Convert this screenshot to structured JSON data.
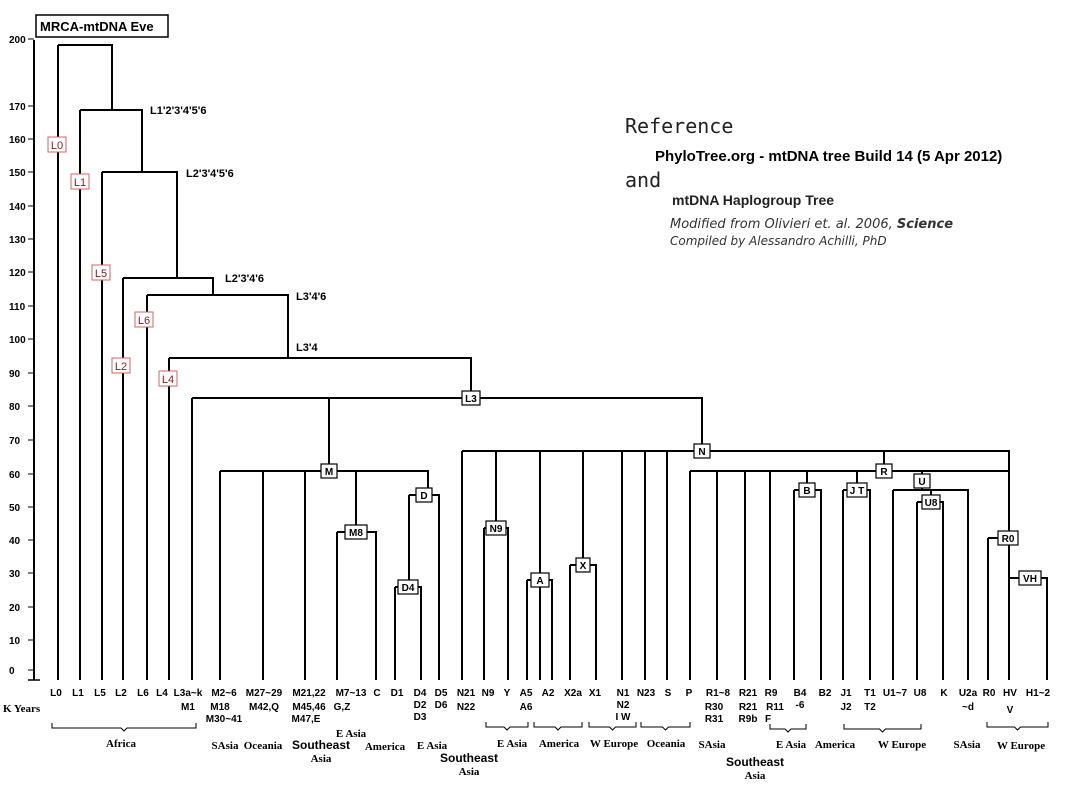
{
  "root_label": "MRCA-mtDNA Eve",
  "axis": {
    "unit_label": "K Years",
    "ticks": [
      "200",
      "170",
      "160",
      "150",
      "140",
      "130",
      "120",
      "110",
      "100",
      "90",
      "80",
      "70",
      "60",
      "50",
      "40",
      "30",
      "20",
      "10",
      "0"
    ]
  },
  "reference": {
    "heading": "Reference",
    "source": "PhyloTree.org - mtDNA tree Build 14 (5 Apr 2012)",
    "and": "and",
    "title": "mtDNA Haplogroup Tree",
    "modified_prefix": "Modified from Olivieri et. al. 2006, ",
    "modified_journal": "Science",
    "compiled": "Compiled by Alessandro Achilli, PhD"
  },
  "node_labels": {
    "L1_6": "L1'2'3'4'5'6",
    "L2_6": "L2'3'4'5'6",
    "L2_4_6": "L2'3'4'6",
    "L3_4_6": "L3'4'6",
    "L3_4": "L3'4"
  },
  "red_boxes": [
    "L0",
    "L1",
    "L5",
    "L2",
    "L6",
    "L4"
  ],
  "black_boxes": [
    "L3",
    "M",
    "N",
    "R",
    "U",
    "U8",
    "B",
    "J T",
    "M8",
    "D",
    "D4",
    "N9",
    "A",
    "X",
    "R0",
    "VH"
  ],
  "leaf_labels": {
    "L0": "L0",
    "L1": "L1",
    "L5": "L5",
    "L2": "L2",
    "L6": "L6",
    "L4": "L4",
    "L3ak": "L3a~k",
    "M1": "M1",
    "M2a": "M2~6",
    "M2b": "M18",
    "M2c": "M30~41",
    "M27a": "M27~29",
    "M27b": "M42,Q",
    "M21a": "M21,22",
    "M21b": "M45,46",
    "M21c": "M47,E",
    "M7a": "M7~13",
    "M7b": "G,Z",
    "C": "C",
    "D1": "D1",
    "D4a": "D4",
    "D4b": "D2",
    "D4c": "D3",
    "D5a": "D5",
    "D5b": "D6",
    "N21a": "N21",
    "N21b": "N22",
    "N9": "N9",
    "Y": "Y",
    "A5a": "A5",
    "A5b": "A6",
    "A2": "A2",
    "X2a": "X2a",
    "X1": "X1",
    "N1a": "N1",
    "N1b": "N2",
    "N1c": "I W",
    "N23": "N23",
    "S": "S",
    "P": "P",
    "R1a": "R1~8",
    "R1b": "R30",
    "R1c": "R31",
    "R21a": "R21",
    "R21b": "R21",
    "R21c": "R9b",
    "R9a": "R9",
    "R9b": "R11",
    "R9c": "F",
    "B4a": "B4",
    "B4b": "-6",
    "B2": "B2",
    "J1": "J1",
    "J2": "J2",
    "T1": "T1",
    "T2": "T2",
    "U1": "U1~7",
    "U8": "U8",
    "K": "K",
    "U2a": "U2a",
    "U2b": "~d",
    "R0": "R0",
    "HV": "HV",
    "V": "V",
    "H1": "H1~2"
  },
  "regions": {
    "africa": "Africa",
    "sasia1": "SAsia",
    "oceania1": "Oceania",
    "seasia1a": "Southeast",
    "seasia1b": "Asia",
    "easia1": "E Asia",
    "america1": "America",
    "easia2": "E Asia",
    "seasia2a": "Southeast",
    "seasia2b": "Asia",
    "easia3": "E Asia",
    "america2": "America",
    "weurope1": "W Europe",
    "oceania2": "Oceania",
    "sasia2": "SAsia",
    "seasia3a": "Southeast",
    "seasia3b": "Asia",
    "easia4": "E Asia",
    "america3": "America",
    "weurope2": "W Europe",
    "sasia3": "SAsia",
    "weurope3": "W Europe"
  }
}
